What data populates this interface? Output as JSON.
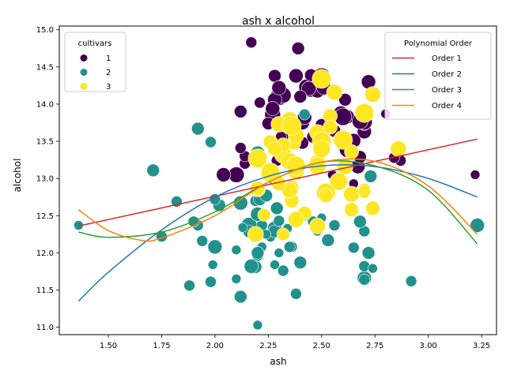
{
  "chart_data": {
    "type": "scatter",
    "title": "ash x alcohol",
    "xlabel": "ash",
    "ylabel": "alcohol",
    "xlim": [
      1.27,
      3.32
    ],
    "ylim": [
      10.9,
      15.05
    ],
    "xticks": [
      1.5,
      1.75,
      2.0,
      2.25,
      2.5,
      2.75,
      3.0,
      3.25
    ],
    "xtick_labels": [
      "1.50",
      "1.75",
      "2.00",
      "2.25",
      "2.50",
      "2.75",
      "3.00",
      "3.25"
    ],
    "yticks": [
      11.0,
      11.5,
      12.0,
      12.5,
      13.0,
      13.5,
      14.0,
      14.5,
      15.0
    ],
    "ytick_labels": [
      "11.0",
      "11.5",
      "12.0",
      "12.5",
      "13.0",
      "13.5",
      "14.0",
      "14.5",
      "15.0"
    ],
    "grid": false,
    "hue_legend": {
      "title": "cultivars",
      "placement": "upper-left",
      "entries": [
        {
          "label": "1",
          "color": "#440154"
        },
        {
          "label": "2",
          "color": "#21918c"
        },
        {
          "label": "3",
          "color": "#fde725"
        }
      ]
    },
    "fit_legend": {
      "title": "Polynomial Order",
      "placement": "upper-right",
      "entries": [
        {
          "label": "Order 1",
          "color": "#d62728"
        },
        {
          "label": "Order 2",
          "color": "#1f77b4"
        },
        {
          "label": "Order 3",
          "color": "#2ca02c"
        },
        {
          "label": "Order 4",
          "color": "#ff7f0e"
        }
      ]
    },
    "series": [
      {
        "name": "1",
        "color": "#440154",
        "points": [
          [
            2.43,
            14.23
          ],
          [
            2.14,
            13.2
          ],
          [
            2.67,
            13.16
          ],
          [
            2.5,
            14.37
          ],
          [
            2.87,
            13.24
          ],
          [
            2.45,
            14.2
          ],
          [
            2.45,
            14.39
          ],
          [
            2.61,
            14.06
          ],
          [
            2.17,
            14.83
          ],
          [
            2.27,
            13.86
          ],
          [
            2.3,
            14.1
          ],
          [
            2.32,
            14.12
          ],
          [
            2.41,
            13.75
          ],
          [
            2.39,
            14.75
          ],
          [
            2.38,
            14.38
          ],
          [
            2.7,
            13.63
          ],
          [
            2.72,
            14.3
          ],
          [
            2.62,
            13.83
          ],
          [
            2.48,
            14.19
          ],
          [
            2.56,
            13.64
          ],
          [
            2.28,
            14.06
          ],
          [
            2.65,
            12.93
          ],
          [
            2.36,
            13.71
          ],
          [
            2.52,
            12.85
          ],
          [
            2.61,
            13.5
          ],
          [
            3.22,
            13.05
          ],
          [
            2.62,
            13.39
          ],
          [
            2.14,
            13.3
          ],
          [
            2.8,
            13.87
          ],
          [
            2.21,
            14.02
          ],
          [
            2.7,
            13.73
          ],
          [
            2.36,
            13.58
          ],
          [
            2.36,
            13.68
          ],
          [
            2.7,
            13.76
          ],
          [
            2.65,
            13.51
          ],
          [
            2.41,
            13.48
          ],
          [
            2.84,
            13.28
          ],
          [
            2.55,
            13.05
          ],
          [
            2.1,
            13.07
          ],
          [
            2.51,
            14.22
          ],
          [
            2.31,
            13.56
          ],
          [
            2.12,
            13.41
          ],
          [
            2.59,
            13.88
          ],
          [
            2.29,
            13.24
          ],
          [
            2.1,
            13.05
          ],
          [
            2.44,
            14.21
          ],
          [
            2.28,
            14.38
          ],
          [
            2.12,
            13.9
          ],
          [
            2.4,
            14.1
          ],
          [
            2.27,
            13.94
          ],
          [
            2.04,
            13.05
          ],
          [
            2.6,
            13.83
          ],
          [
            2.42,
            13.82
          ],
          [
            2.68,
            13.77
          ],
          [
            2.25,
            13.74
          ],
          [
            2.46,
            13.56
          ],
          [
            2.3,
            14.22
          ],
          [
            2.68,
            13.29
          ],
          [
            2.5,
            13.72
          ]
        ],
        "sizes": [
          10,
          7,
          9,
          11,
          7,
          10,
          8,
          8,
          7,
          10,
          11,
          10,
          9,
          8,
          9,
          9,
          9,
          9,
          10,
          8,
          9,
          6,
          8,
          7,
          9,
          6,
          10,
          7,
          6,
          7,
          8,
          8,
          8,
          10,
          9,
          8,
          7,
          6,
          8,
          9,
          7,
          7,
          9,
          7,
          10,
          9,
          8,
          8,
          8,
          9,
          9,
          11,
          9,
          10,
          8,
          8,
          9,
          8,
          8
        ]
      },
      {
        "name": "2",
        "color": "#21918c",
        "points": [
          [
            1.36,
            12.37
          ],
          [
            2.28,
            12.33
          ],
          [
            2.02,
            12.64
          ],
          [
            1.92,
            13.67
          ],
          [
            2.16,
            12.37
          ],
          [
            2.53,
            12.17
          ],
          [
            2.56,
            12.37
          ],
          [
            1.71,
            13.11
          ],
          [
            2.22,
            12.37
          ],
          [
            2.2,
            13.34
          ],
          [
            2.26,
            12.21
          ],
          [
            2.16,
            12.29
          ],
          [
            2.42,
            13.86
          ],
          [
            1.98,
            13.49
          ],
          [
            2.28,
            12.99
          ],
          [
            2.2,
            11.96
          ],
          [
            2.7,
            11.66
          ],
          [
            2.73,
            13.03
          ],
          [
            1.99,
            11.84
          ],
          [
            2.34,
            12.33
          ],
          [
            2.19,
            12.7
          ],
          [
            2.72,
            12.0
          ],
          [
            2.0,
            12.72
          ],
          [
            2.36,
            12.08
          ],
          [
            2.28,
            13.05
          ],
          [
            2.28,
            11.84
          ],
          [
            2.12,
            12.67
          ],
          [
            1.94,
            12.16
          ],
          [
            2.1,
            11.65
          ],
          [
            2.7,
            11.64
          ],
          [
            2.22,
            12.08
          ],
          [
            2.36,
            12.08
          ],
          [
            2.2,
            12.0
          ],
          [
            1.82,
            12.69
          ],
          [
            2.7,
            12.29
          ],
          [
            2.92,
            11.62
          ],
          [
            2.5,
            12.47
          ],
          [
            2.19,
            11.81
          ],
          [
            2.28,
            12.29
          ],
          [
            1.92,
            12.37
          ],
          [
            2.48,
            12.29
          ],
          [
            2.0,
            12.08
          ],
          [
            2.29,
            12.6
          ],
          [
            2.13,
            12.34
          ],
          [
            2.17,
            11.82
          ],
          [
            2.42,
            12.51
          ],
          [
            1.9,
            12.42
          ],
          [
            2.24,
            12.25
          ],
          [
            2.21,
            12.72
          ],
          [
            1.75,
            12.22
          ],
          [
            1.98,
            11.61
          ],
          [
            2.38,
            11.46
          ],
          [
            2.2,
            12.52
          ],
          [
            2.32,
            11.76
          ],
          [
            2.12,
            11.41
          ],
          [
            2.35,
            12.08
          ],
          [
            2.2,
            11.03
          ],
          [
            2.7,
            11.82
          ],
          [
            2.68,
            12.42
          ],
          [
            2.24,
            12.77
          ],
          [
            2.3,
            12.0
          ],
          [
            2.38,
            11.45
          ],
          [
            1.88,
            11.56
          ],
          [
            2.46,
            12.42
          ],
          [
            2.39,
            13.05
          ],
          [
            2.4,
            11.87
          ],
          [
            2.65,
            12.07
          ],
          [
            2.3,
            12.43
          ],
          [
            2.74,
            11.79
          ],
          [
            3.23,
            12.37
          ],
          [
            2.1,
            12.04
          ]
        ],
        "sizes": [
          6,
          9,
          8,
          8,
          10,
          8,
          7,
          8,
          7,
          9,
          6,
          8,
          7,
          7,
          8,
          7,
          9,
          8,
          6,
          6,
          7,
          8,
          7,
          6,
          7,
          6,
          9,
          7,
          6,
          7,
          6,
          7,
          8,
          7,
          7,
          7,
          6,
          8,
          8,
          7,
          6,
          9,
          8,
          6,
          9,
          8,
          7,
          6,
          8,
          7,
          7,
          6,
          9,
          7,
          8,
          7,
          6,
          7,
          8,
          8,
          6,
          7,
          7,
          7,
          6,
          8,
          7,
          7,
          6,
          9,
          6
        ]
      },
      {
        "name": "3",
        "color": "#fde725",
        "points": [
          [
            2.2,
            12.86
          ],
          [
            2.36,
            12.88
          ],
          [
            2.52,
            12.81
          ],
          [
            2.36,
            12.7
          ],
          [
            2.23,
            12.51
          ],
          [
            2.74,
            12.6
          ],
          [
            2.32,
            12.25
          ],
          [
            2.42,
            12.53
          ],
          [
            2.26,
            13.49
          ],
          [
            2.35,
            12.84
          ],
          [
            2.3,
            12.93
          ],
          [
            2.64,
            13.36
          ],
          [
            2.6,
            13.52
          ],
          [
            2.48,
            13.62
          ],
          [
            2.19,
            12.25
          ],
          [
            2.61,
            13.16
          ],
          [
            2.7,
            13.88
          ],
          [
            2.2,
            12.87
          ],
          [
            2.32,
            13.32
          ],
          [
            2.26,
            13.08
          ],
          [
            2.5,
            13.5
          ],
          [
            2.64,
            12.79
          ],
          [
            2.38,
            13.11
          ],
          [
            2.35,
            13.23
          ],
          [
            2.64,
            12.58
          ],
          [
            2.38,
            13.17
          ],
          [
            2.54,
            13.84
          ],
          [
            2.38,
            12.45
          ],
          [
            2.5,
            14.34
          ],
          [
            2.37,
            13.48
          ],
          [
            2.48,
            12.36
          ],
          [
            2.54,
            13.69
          ],
          [
            2.7,
            12.85
          ],
          [
            2.58,
            12.96
          ],
          [
            2.35,
            13.78
          ],
          [
            2.3,
            13.73
          ],
          [
            2.32,
            13.45
          ],
          [
            2.7,
            12.82
          ],
          [
            2.38,
            13.58
          ],
          [
            2.28,
            13.4
          ],
          [
            2.86,
            13.4
          ],
          [
            2.48,
            13.2
          ],
          [
            2.52,
            12.77
          ],
          [
            2.56,
            14.16
          ],
          [
            2.36,
            13.71
          ],
          [
            2.5,
            13.4
          ],
          [
            2.2,
            13.27
          ],
          [
            2.48,
            13.17
          ],
          [
            2.74,
            14.13
          ]
        ],
        "sizes": [
          10,
          9,
          12,
          9,
          8,
          9,
          8,
          9,
          9,
          10,
          9,
          9,
          12,
          10,
          10,
          10,
          12,
          9,
          11,
          12,
          12,
          10,
          11,
          11,
          9,
          12,
          9,
          10,
          12,
          9,
          10,
          9,
          8,
          11,
          11,
          10,
          9,
          8,
          10,
          9,
          10,
          11,
          9,
          10,
          12,
          11,
          12,
          11,
          10
        ]
      }
    ],
    "fits": [
      {
        "name": "Order 1",
        "color": "#d62728",
        "x": [
          1.36,
          3.23
        ],
        "y": [
          12.36,
          13.53
        ]
      },
      {
        "name": "Order 2",
        "color": "#1f77b4",
        "x": [
          1.36,
          1.5,
          1.75,
          2.0,
          2.25,
          2.5,
          2.75,
          3.0,
          3.23
        ],
        "y": [
          11.35,
          11.74,
          12.31,
          12.75,
          13.03,
          13.17,
          13.16,
          13.0,
          12.75
        ]
      },
      {
        "name": "Order 3",
        "color": "#2ca02c",
        "x": [
          1.36,
          1.5,
          1.75,
          2.0,
          2.25,
          2.5,
          2.75,
          3.0,
          3.23
        ],
        "y": [
          12.28,
          12.21,
          12.28,
          12.55,
          12.95,
          13.22,
          13.17,
          12.84,
          12.12
        ]
      },
      {
        "name": "Order 4",
        "color": "#ff7f0e",
        "x": [
          1.36,
          1.5,
          1.65,
          1.75,
          2.0,
          2.25,
          2.5,
          2.75,
          3.0,
          3.23
        ],
        "y": [
          12.58,
          12.3,
          12.17,
          12.2,
          12.5,
          12.95,
          13.22,
          13.23,
          12.9,
          12.25
        ]
      }
    ]
  }
}
